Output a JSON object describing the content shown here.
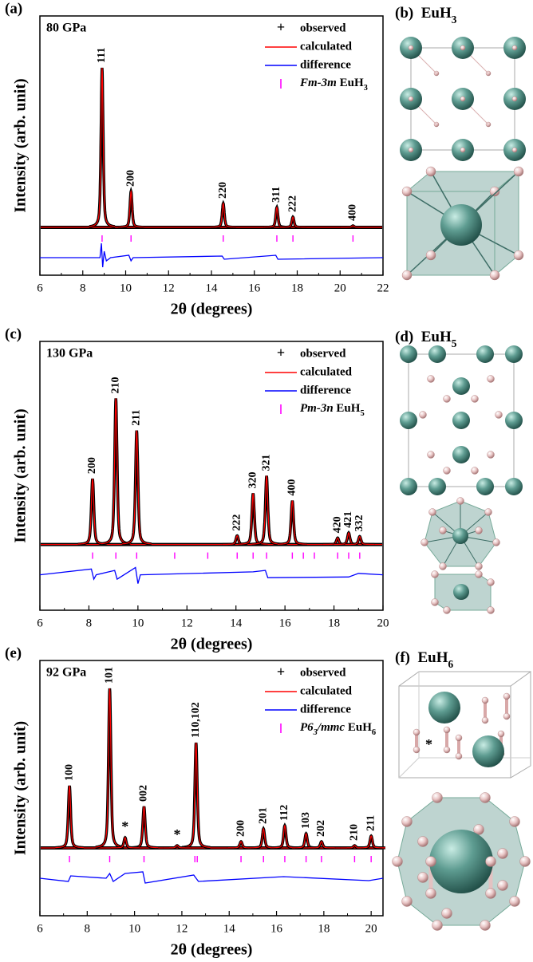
{
  "chart_data": [
    {
      "type": "xrd",
      "panel": "(a)",
      "pressure": "80 GPa",
      "xlabel": "2θ (degrees)",
      "ylabel": "Intensity (arb. unit)",
      "xlim": [
        6,
        22
      ],
      "xticks": [
        6,
        8,
        10,
        12,
        14,
        16,
        18,
        20,
        22
      ],
      "ylim": [
        -30,
        132.5
      ],
      "series": [
        {
          "name": "observed",
          "symbol": "+",
          "color": "#000000"
        },
        {
          "name": "calculated",
          "color": "#ff0000"
        },
        {
          "name": "difference",
          "color": "#0000ff"
        },
        {
          "group_parts": [
            "Fm-3m"
          ],
          "formula_parts": [
            "EuH",
            "3"
          ],
          "color": "#ff00ff"
        }
      ],
      "peaks": {
        "hkl": [
          "111",
          "200",
          "220",
          "311",
          "222",
          "400"
        ],
        "x": [
          8.9,
          10.25,
          14.55,
          17.05,
          17.8,
          20.6
        ],
        "values": [
          100,
          22.5,
          15,
          12.5,
          6.5,
          1
        ]
      },
      "reflections": [
        8.9,
        10.25,
        14.55,
        17.05,
        17.8,
        20.6
      ],
      "difference": {
        "x": [
          6,
          8.8,
          8.87,
          8.93,
          9.0,
          9.1,
          9.3,
          10.15,
          10.25,
          10.35,
          14.5,
          14.6,
          17.0,
          17.1,
          22
        ],
        "values": [
          0,
          0,
          9,
          -6,
          4,
          -2,
          0,
          1.5,
          -2,
          0,
          1,
          -1,
          1.5,
          -1,
          0
        ]
      }
    },
    {
      "type": "xrd",
      "panel": "(c)",
      "pressure": "130 GPa",
      "xlabel": "2θ (degrees)",
      "ylabel": "Intensity (arb. unit)",
      "xlim": [
        6,
        20
      ],
      "xticks": [
        6,
        8,
        10,
        12,
        14,
        16,
        18,
        20
      ],
      "ylim": [
        -45,
        139
      ],
      "series": [
        {
          "name": "observed",
          "symbol": "+",
          "color": "#000000"
        },
        {
          "name": "calculated",
          "color": "#ff0000"
        },
        {
          "name": "difference",
          "color": "#0000ff"
        },
        {
          "group_parts": [
            "Pm-3n"
          ],
          "formula_parts": [
            "EuH",
            "5"
          ],
          "color": "#ff00ff"
        }
      ],
      "peaks": {
        "hkl": [
          "200",
          "210",
          "211",
          "222",
          "320",
          "321",
          "400",
          "420",
          "421",
          "332"
        ],
        "x": [
          8.15,
          9.1,
          9.95,
          14.05,
          14.7,
          15.25,
          16.3,
          18.15,
          18.6,
          19.05
        ],
        "values": [
          45,
          100,
          78,
          6,
          35,
          47,
          30,
          4.5,
          8,
          5.5
        ]
      },
      "reflections": [
        8.15,
        9.1,
        9.95,
        11.5,
        12.85,
        14.05,
        14.7,
        15.25,
        16.3,
        16.75,
        17.2,
        18.15,
        18.6,
        19.05
      ],
      "difference": {
        "x": [
          6,
          8.1,
          8.2,
          8.3,
          9.05,
          9.15,
          9.9,
          10.0,
          10.1,
          14.7,
          15.2,
          15.3,
          18.6,
          19.0,
          20
        ],
        "values": [
          0,
          4,
          -3,
          0,
          3,
          -3,
          5,
          -6,
          0,
          2,
          3,
          -2,
          -1.5,
          1,
          0
        ]
      }
    },
    {
      "type": "xrd",
      "panel": "(e)",
      "pressure": "92 GPa",
      "xlabel": "2θ (degrees)",
      "ylabel": "Intensity (arb. unit)",
      "xlim": [
        6,
        20.5
      ],
      "xticks": [
        6,
        8,
        10,
        12,
        14,
        16,
        18,
        20
      ],
      "ylim": [
        -42.5,
        117.5
      ],
      "series": [
        {
          "name": "observed",
          "symbol": "+",
          "color": "#000000"
        },
        {
          "name": "calculated",
          "color": "#ff0000"
        },
        {
          "name": "difference",
          "color": "#0000ff"
        },
        {
          "group_parts": [
            "P6",
            "3",
            "/mmc"
          ],
          "formula_parts": [
            "EuH",
            "6"
          ],
          "color": "#ff00ff"
        }
      ],
      "peaks": {
        "hkl": [
          "100",
          "101",
          "002",
          "110,102",
          "200",
          "201",
          "112",
          "103",
          "202",
          "210",
          "211"
        ],
        "x": [
          7.25,
          8.95,
          10.4,
          12.6,
          14.5,
          15.45,
          16.35,
          17.25,
          17.9,
          19.3,
          20.0
        ],
        "values": [
          39,
          100,
          26,
          66,
          4,
          12,
          14,
          9,
          4,
          1.5,
          7.5
        ]
      },
      "impurities": {
        "labels": [
          "*",
          "*"
        ],
        "x": [
          9.6,
          11.8
        ],
        "values": [
          6.5,
          1.5
        ]
      },
      "reflections": [
        7.25,
        8.95,
        10.4,
        12.55,
        12.65,
        14.5,
        15.45,
        16.35,
        17.25,
        17.9,
        19.3,
        20.0
      ],
      "difference": {
        "x": [
          6,
          7.2,
          7.3,
          8.8,
          8.95,
          9.1,
          9.6,
          10.35,
          10.45,
          12.5,
          12.7,
          16.3,
          19.9,
          20.5
        ],
        "values": [
          0,
          -2,
          1.5,
          0,
          3,
          -2,
          3,
          4,
          -3,
          2,
          -2,
          1,
          -1.5,
          0
        ]
      }
    }
  ],
  "structures": [
    {
      "panel": "(b)",
      "formula_parts": [
        "EuH",
        "3"
      ]
    },
    {
      "panel": "(d)",
      "formula_parts": [
        "EuH",
        "5"
      ]
    },
    {
      "panel": "(f)",
      "formula_parts": [
        "EuH",
        "6"
      ],
      "annotation": "*"
    }
  ]
}
